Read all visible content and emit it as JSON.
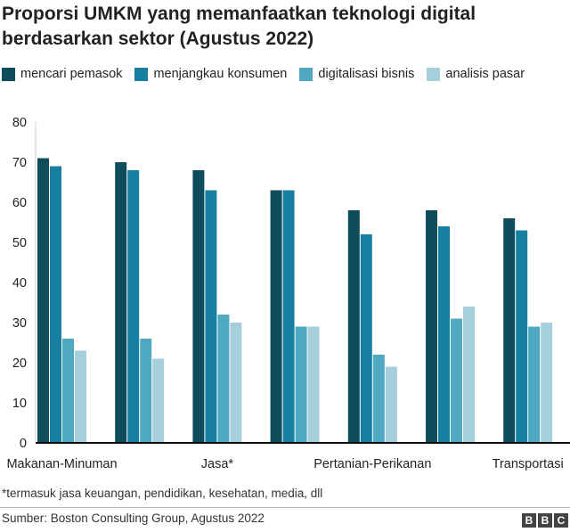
{
  "chart_data": {
    "type": "bar",
    "title": "Proporsi UMKM yang memanfaatkan teknologi digital berdasarkan sektor (Agustus 2022)",
    "categories": [
      "Makanan-Minuman",
      "",
      "Jasa*",
      "",
      "Pertanian-Perikanan",
      "",
      "Transportasi"
    ],
    "series": [
      {
        "name": "mencari pemasok",
        "color": "#0f4c5c",
        "values": [
          71,
          70,
          68,
          63,
          58,
          58,
          56
        ]
      },
      {
        "name": "menjangkau konsumen",
        "color": "#1780a1",
        "values": [
          69,
          68,
          63,
          63,
          52,
          54,
          53
        ]
      },
      {
        "name": "digitalisasi bisnis",
        "color": "#4fa9c0",
        "values": [
          26,
          26,
          32,
          29,
          22,
          31,
          29
        ]
      },
      {
        "name": "analisis pasar",
        "color": "#a5cfdb",
        "values": [
          23,
          21,
          30,
          29,
          19,
          34,
          30
        ]
      }
    ],
    "yticks": [
      "0",
      "10",
      "20",
      "30",
      "40",
      "50",
      "60",
      "70",
      "80"
    ],
    "ylim": [
      0,
      80
    ],
    "legend": "top",
    "grid": false
  },
  "footnote": "*termasuk jasa keuangan, pendidikan, kesehatan, media, dll",
  "source": "Sumber: Boston Consulting Group, Agustus 2022",
  "logo": [
    "B",
    "B",
    "C"
  ]
}
